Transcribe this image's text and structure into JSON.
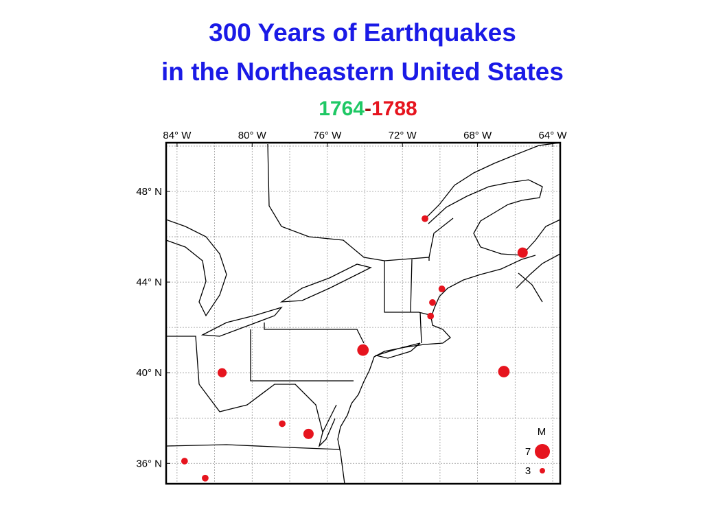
{
  "title": [
    "300 Years of Earthquakes",
    "in the Northeastern United States"
  ],
  "period": {
    "start": "1764",
    "dash": "-",
    "end": "1788",
    "start_color": "#1ec864",
    "end_color": "#e6141e"
  },
  "map": {
    "xlim": [
      -84.58,
      -63.6
    ],
    "ylim": [
      35.1,
      50.15
    ],
    "grid_step": 2,
    "xticks": [
      {
        "value": -84,
        "label": "84° W"
      },
      {
        "value": -80,
        "label": "80° W"
      },
      {
        "value": -76,
        "label": "76° W"
      },
      {
        "value": -72,
        "label": "72° W"
      },
      {
        "value": -68,
        "label": "68° W"
      },
      {
        "value": -64,
        "label": "64° W"
      }
    ],
    "yticks": [
      {
        "value": 48,
        "label": "48° N"
      },
      {
        "value": 44,
        "label": "44° N"
      },
      {
        "value": 40,
        "label": "40° N"
      },
      {
        "value": 36,
        "label": "36° N"
      }
    ],
    "marker_color": "#e6141e",
    "events": {
      "lon": [
        -70.8,
        -65.6,
        -69.9,
        -70.4,
        -70.5,
        -74.1,
        -66.6,
        -81.6,
        -78.4,
        -77.0,
        -83.6,
        -82.5
      ],
      "lat": [
        46.8,
        45.3,
        43.7,
        43.1,
        42.5,
        41.0,
        40.05,
        40.0,
        37.75,
        37.3,
        36.1,
        35.35
      ],
      "magnitude": [
        3.5,
        5,
        3.5,
        3.5,
        3.5,
        5.5,
        5.5,
        4.5,
        3.5,
        5,
        3.5,
        3.5
      ]
    },
    "legend": {
      "title": "M",
      "magnitudes": [
        7,
        3
      ]
    }
  }
}
